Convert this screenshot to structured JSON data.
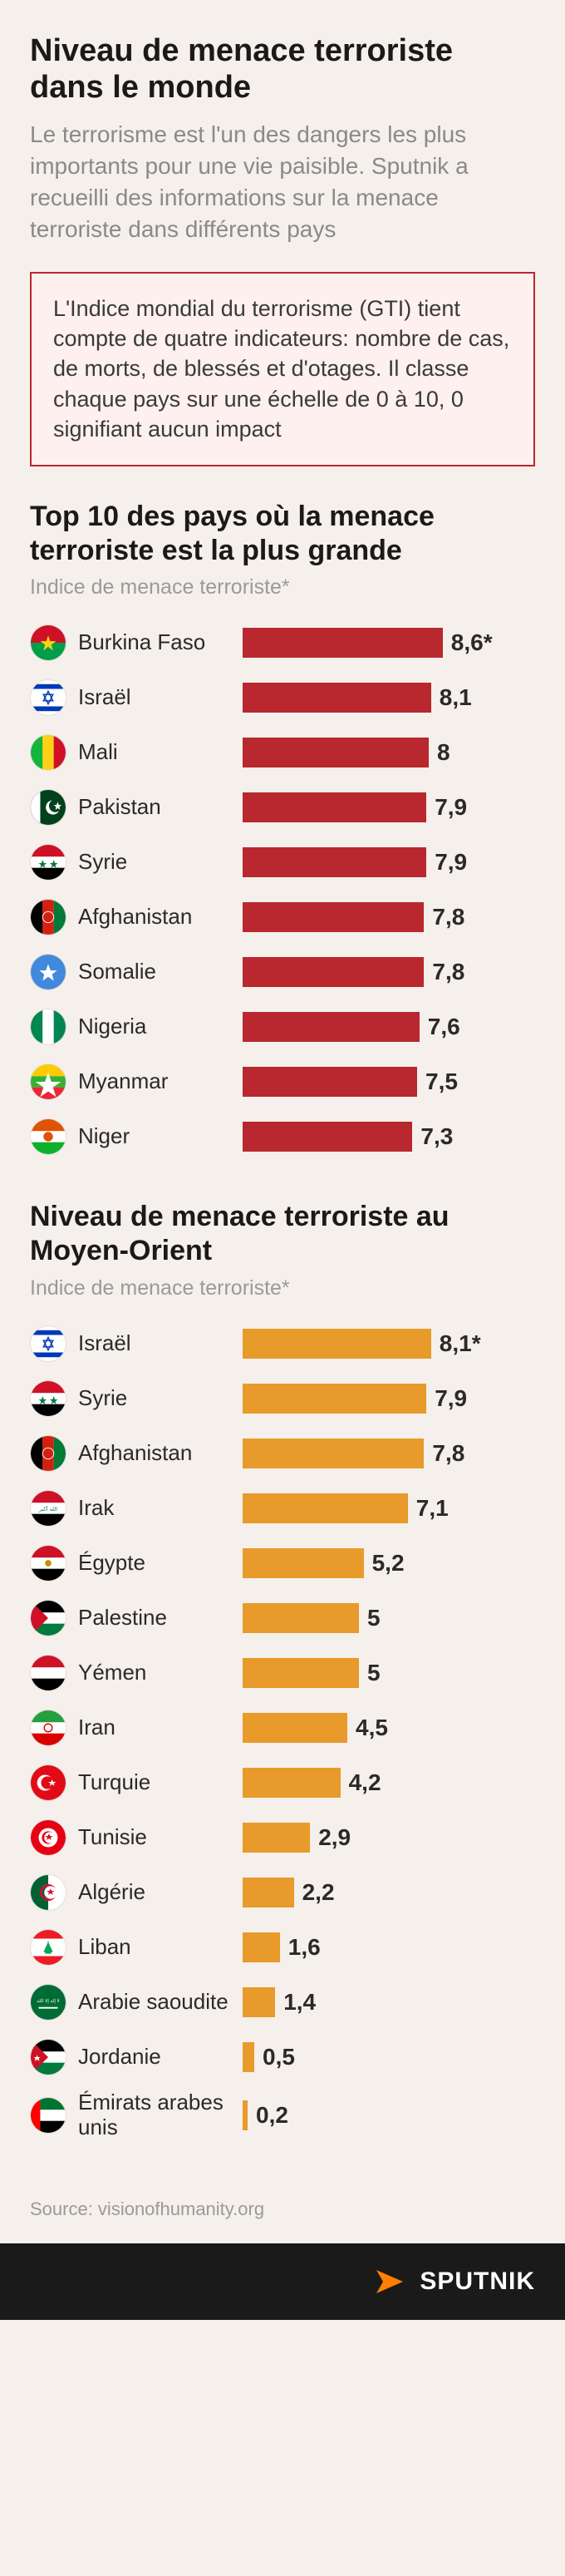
{
  "header": {
    "title": "Niveau de menace terroriste dans le monde",
    "subtitle": "Le terrorisme est l'un des dangers les plus importants pour une vie paisible. Sputnik a recueilli des informations sur la menace terroriste dans différents pays"
  },
  "info_box": {
    "text": "L'Indice mondial du terrorisme (GTI) tient compte de quatre indicateurs: nombre de cas, de morts, de blessés et d'otages. Il classe chaque pays sur une échelle de 0 à 10, 0 signifiant aucun impact",
    "border_color": "#b8282e",
    "bg_color": "#fdf0ef"
  },
  "colors": {
    "page_bg": "#f5f0eb",
    "chart1_bar": "#b8282e",
    "chart2_bar": "#e89a2a",
    "text_primary": "#1a1a1a",
    "text_muted": "#8a8a8a"
  },
  "chart1": {
    "title": "Top 10 des pays où la menace terroriste est la plus grande",
    "subtitle": "Indice de menace terroriste*",
    "bar_color": "#b8282e",
    "max": 10,
    "bar_full_width": 280,
    "rows": [
      {
        "country": "Burkina Faso",
        "value": 8.6,
        "label": "8,6*",
        "flag": "burkina"
      },
      {
        "country": "Israël",
        "value": 8.1,
        "label": "8,1",
        "flag": "israel"
      },
      {
        "country": "Mali",
        "value": 8.0,
        "label": "8",
        "flag": "mali"
      },
      {
        "country": "Pakistan",
        "value": 7.9,
        "label": "7,9",
        "flag": "pakistan"
      },
      {
        "country": "Syrie",
        "value": 7.9,
        "label": "7,9",
        "flag": "syria"
      },
      {
        "country": "Afghanistan",
        "value": 7.8,
        "label": "7,8",
        "flag": "afghanistan"
      },
      {
        "country": "Somalie",
        "value": 7.8,
        "label": "7,8",
        "flag": "somalia"
      },
      {
        "country": "Nigeria",
        "value": 7.6,
        "label": "7,6",
        "flag": "nigeria"
      },
      {
        "country": "Myanmar",
        "value": 7.5,
        "label": "7,5",
        "flag": "myanmar"
      },
      {
        "country": "Niger",
        "value": 7.3,
        "label": "7,3",
        "flag": "niger"
      }
    ]
  },
  "chart2": {
    "title": "Niveau de menace terroriste au Moyen-Orient",
    "subtitle": "Indice de menace terroriste*",
    "bar_color": "#e89a2a",
    "max": 10,
    "bar_full_width": 280,
    "rows": [
      {
        "country": "Israël",
        "value": 8.1,
        "label": "8,1*",
        "flag": "israel"
      },
      {
        "country": "Syrie",
        "value": 7.9,
        "label": "7,9",
        "flag": "syria"
      },
      {
        "country": "Afghanistan",
        "value": 7.8,
        "label": "7,8",
        "flag": "afghanistan"
      },
      {
        "country": "Irak",
        "value": 7.1,
        "label": "7,1",
        "flag": "iraq"
      },
      {
        "country": "Égypte",
        "value": 5.2,
        "label": "5,2",
        "flag": "egypt"
      },
      {
        "country": "Palestine",
        "value": 5.0,
        "label": "5",
        "flag": "palestine"
      },
      {
        "country": "Yémen",
        "value": 5.0,
        "label": "5",
        "flag": "yemen"
      },
      {
        "country": "Iran",
        "value": 4.5,
        "label": "4,5",
        "flag": "iran"
      },
      {
        "country": "Turquie",
        "value": 4.2,
        "label": "4,2",
        "flag": "turkey"
      },
      {
        "country": "Tunisie",
        "value": 2.9,
        "label": "2,9",
        "flag": "tunisia"
      },
      {
        "country": "Algérie",
        "value": 2.2,
        "label": "2,2",
        "flag": "algeria"
      },
      {
        "country": "Liban",
        "value": 1.6,
        "label": "1,6",
        "flag": "lebanon"
      },
      {
        "country": "Arabie saoudite",
        "value": 1.4,
        "label": "1,4",
        "flag": "saudi"
      },
      {
        "country": "Jordanie",
        "value": 0.5,
        "label": "0,5",
        "flag": "jordan"
      },
      {
        "country": "Émirats arabes unis",
        "value": 0.2,
        "label": "0,2",
        "flag": "uae"
      }
    ]
  },
  "source": "Source: visionofhumanity.org",
  "footer": {
    "brand": "SPUTNIK"
  },
  "flags": {
    "burkina": "<svg viewBox='0 0 44 44'><rect width='44' height='22' fill='#ce1126'/><rect y='22' width='44' height='22' fill='#009e49'/><polygon points='22,13 24.5,20 32,20 26,24.5 28,32 22,27 16,32 18,24.5 12,20 19.5,20' fill='#fcd116'/></svg>",
    "israel": "<svg viewBox='0 0 44 44'><rect width='44' height='44' fill='#fff'/><rect y='5' width='44' height='6' fill='#0038b8'/><rect y='33' width='44' height='6' fill='#0038b8'/><path d='M22 14 L28 26 L16 26 Z M22 30 L16 18 L28 18 Z' fill='none' stroke='#0038b8' stroke-width='1.5'/></svg>",
    "mali": "<svg viewBox='0 0 44 44'><rect width='15' height='44' fill='#14b53a'/><rect x='15' width='14' height='44' fill='#fcd116'/><rect x='29' width='15' height='44' fill='#ce1126'/></svg>",
    "pakistan": "<svg viewBox='0 0 44 44'><rect width='44' height='44' fill='#01411c'/><rect width='12' height='44' fill='#fff'/><circle cx='28' cy='22' r='9' fill='#fff'/><circle cx='31' cy='20' r='8' fill='#01411c'/><polygon points='34,15 35.5,19 39,19 36,21.5 37,25 34,23 31,25 32,21.5 29,19 32.5,19' fill='#fff'/></svg>",
    "syria": "<svg viewBox='0 0 44 44'><rect width='44' height='15' fill='#ce1126'/><rect y='15' width='44' height='14' fill='#fff'/><rect y='29' width='44' height='15' fill='#000'/><polygon points='15,19 16.5,23 20,23 17,25.5 18,29 15,27 12,29 13,25.5 10,23 13.5,23' fill='#007a3d'/><polygon points='29,19 30.5,23 34,23 31,25.5 32,29 29,27 26,29 27,25.5 24,23 27.5,23' fill='#007a3d'/></svg>",
    "afghanistan": "<svg viewBox='0 0 44 44'><rect width='15' height='44' fill='#000'/><rect x='15' width='14' height='44' fill='#d32011'/><rect x='29' width='15' height='44' fill='#007a36'/><circle cx='22' cy='22' r='7' fill='none' stroke='#fff' stroke-width='1'/></svg>",
    "somalia": "<svg viewBox='0 0 44 44'><rect width='44' height='44' fill='#4189dd'/><polygon points='22,12 25,20 33,20 27,25 29,33 22,28 15,33 17,25 11,20 19,20' fill='#fff'/></svg>",
    "nigeria": "<svg viewBox='0 0 44 44'><rect width='15' height='44' fill='#008751'/><rect x='15' width='14' height='44' fill='#fff'/><rect x='29' width='15' height='44' fill='#008751'/></svg>",
    "myanmar": "<svg viewBox='0 0 44 44'><rect width='44' height='15' fill='#fecb00'/><rect y='15' width='44' height='14' fill='#34b233'/><rect y='29' width='44' height='15' fill='#ea2839'/><polygon points='22,10 26,22 38,22 28,29 32,41 22,34 12,41 16,29 6,22 18,22' fill='#fff'/></svg>",
    "niger": "<svg viewBox='0 0 44 44'><rect width='44' height='15' fill='#e05206'/><rect y='15' width='44' height='14' fill='#fff'/><rect y='29' width='44' height='15' fill='#0db02b'/><circle cx='22' cy='22' r='6' fill='#e05206'/></svg>",
    "iraq": "<svg viewBox='0 0 44 44'><rect width='44' height='15' fill='#ce1126'/><rect y='15' width='44' height='14' fill='#fff'/><rect y='29' width='44' height='15' fill='#000'/><text x='22' y='25' font-size='7' fill='#007a3d' text-anchor='middle'>الله أكبر</text></svg>",
    "egypt": "<svg viewBox='0 0 44 44'><rect width='44' height='15' fill='#ce1126'/><rect y='15' width='44' height='14' fill='#fff'/><rect y='29' width='44' height='15' fill='#000'/><circle cx='22' cy='22' r='4' fill='#c09300'/></svg>",
    "palestine": "<svg viewBox='0 0 44 44'><rect width='44' height='15' fill='#000'/><rect y='15' width='44' height='14' fill='#fff'/><rect y='29' width='44' height='15' fill='#007a3d'/><polygon points='0,0 22,22 0,44' fill='#ce1126'/></svg>",
    "yemen": "<svg viewBox='0 0 44 44'><rect width='44' height='15' fill='#ce1126'/><rect y='15' width='44' height='14' fill='#fff'/><rect y='29' width='44' height='15' fill='#000'/></svg>",
    "iran": "<svg viewBox='0 0 44 44'><rect width='44' height='15' fill='#239f40'/><rect y='15' width='44' height='14' fill='#fff'/><rect y='29' width='44' height='15' fill='#da0000'/><circle cx='22' cy='22' r='5' fill='none' stroke='#da0000' stroke-width='1.5'/></svg>",
    "turkey": "<svg viewBox='0 0 44 44'><rect width='44' height='44' fill='#e30a17'/><circle cx='18' cy='22' r='10' fill='#fff'/><circle cx='21' cy='22' r='8' fill='#e30a17'/><polygon points='27,18 28.5,21 32,21 29,23 30,26 27,24 24,26 25,23 22,21 25.5,21' fill='#fff'/></svg>",
    "tunisia": "<svg viewBox='0 0 44 44'><rect width='44' height='44' fill='#e70013'/><circle cx='22' cy='22' r='12' fill='#fff'/><circle cx='22' cy='22' r='8' fill='#e70013'/><circle cx='24' cy='22' r='7' fill='#fff'/><polygon points='23,17 24.5,20 28,20 25,22 26,25 23,23 20,25 21,22 18,20 21.5,20' fill='#e70013'/></svg>",
    "algeria": "<svg viewBox='0 0 44 44'><rect width='22' height='44' fill='#006233'/><rect x='22' width='22' height='44' fill='#fff'/><circle cx='22' cy='22' r='9' fill='none' stroke='#d21034' stroke-width='3'/><circle cx='25' cy='22' r='8' fill='#fff'/><circle cx='25' cy='22' r='8' fill='#006233' clip-path='inset(0 22px 0 0)'/><polygon points='25,17 26.5,20 30,20 27,22 28,25 25,23 22,25 23,22 20,20 23.5,20' fill='#d21034'/></svg>",
    "lebanon": "<svg viewBox='0 0 44 44'><rect width='44' height='11' fill='#ed1c24'/><rect y='11' width='44' height='22' fill='#fff'/><rect y='33' width='44' height='11' fill='#ed1c24'/><path d='M22 13 L18 30 L26 30 Z M22 15 L16 28 L28 28 Z' fill='#00a651'/></svg>",
    "saudi": "<svg viewBox='0 0 44 44'><rect width='44' height='44' fill='#006c35'/><rect x='10' y='28' width='24' height='2' fill='#fff'/><text x='22' y='22' font-size='6' fill='#fff' text-anchor='middle'>لا إله إلا الله</text></svg>",
    "jordan": "<svg viewBox='0 0 44 44'><rect width='44' height='15' fill='#000'/><rect y='15' width='44' height='14' fill='#fff'/><rect y='29' width='44' height='15' fill='#007a3d'/><polygon points='0,0 22,22 0,44' fill='#ce1126'/><polygon points='8,19 9,22 12,22 10,24 11,27 8,25 5,27 6,24 4,22 7,22' fill='#fff'/></svg>",
    "uae": "<svg viewBox='0 0 44 44'><rect width='12' height='44' fill='#ff0000'/><rect x='12' width='32' height='15' fill='#00732f'/><rect x='12' y='15' width='32' height='14' fill='#fff'/><rect x='12' y='29' width='32' height='15' fill='#000'/></svg>"
  }
}
